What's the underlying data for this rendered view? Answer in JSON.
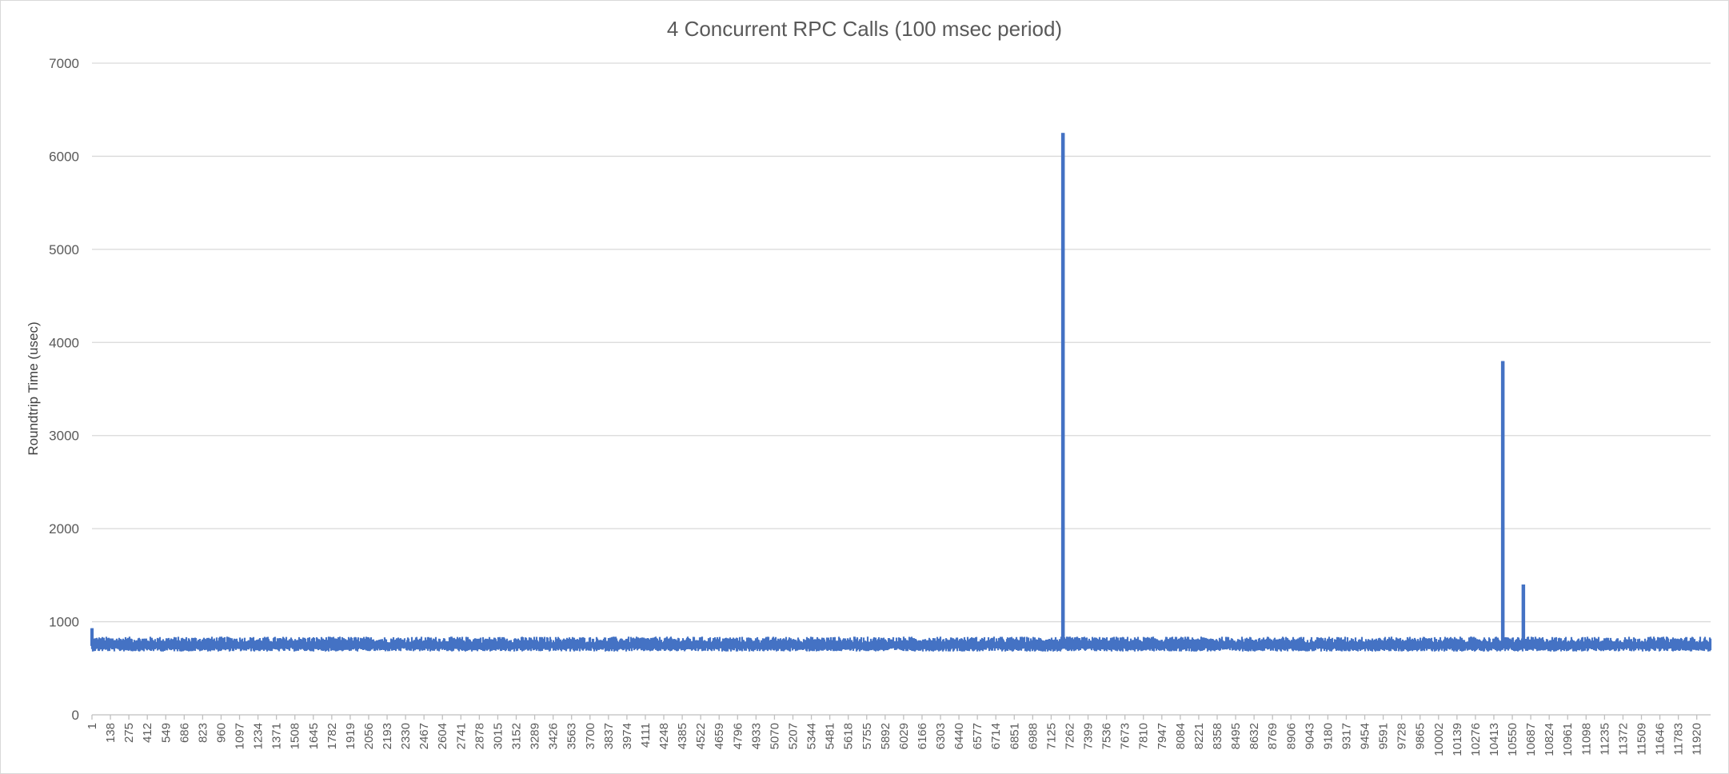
{
  "chart_data": {
    "type": "line",
    "title": "4 Concurrent RPC Calls (100 msec period)",
    "xlabel": "",
    "ylabel": "Roundtrip Time (usec)",
    "ylim": [
      0,
      7000
    ],
    "yticks": [
      0,
      1000,
      2000,
      3000,
      4000,
      5000,
      6000,
      7000
    ],
    "grid": true,
    "legend": "none",
    "line_color": "#4472c4",
    "xlim": [
      1,
      11999
    ],
    "xtick_labels": [
      "1",
      "138",
      "275",
      "412",
      "549",
      "686",
      "823",
      "960",
      "1097",
      "1234",
      "1371",
      "1508",
      "1645",
      "1782",
      "1919",
      "2056",
      "2193",
      "2330",
      "2467",
      "2604",
      "2741",
      "2878",
      "3015",
      "3152",
      "3289",
      "3426",
      "3563",
      "3700",
      "3837",
      "3974",
      "4111",
      "4248",
      "4385",
      "4522",
      "4659",
      "4796",
      "4933",
      "5070",
      "5207",
      "5344",
      "5481",
      "5618",
      "5755",
      "5892",
      "6029",
      "6166",
      "6303",
      "6440",
      "6577",
      "6714",
      "6851",
      "6988",
      "7125",
      "7262",
      "7399",
      "7536",
      "7673",
      "7810",
      "7947",
      "8084",
      "8221",
      "8358",
      "8495",
      "8632",
      "8769",
      "8906",
      "9043",
      "9180",
      "9317",
      "9454",
      "9591",
      "9728",
      "9865",
      "10002",
      "10139",
      "10276",
      "10413",
      "10550",
      "10687",
      "10824",
      "10961",
      "11098",
      "11235",
      "11372",
      "11509",
      "11646",
      "11783",
      "11920"
    ],
    "series": [
      {
        "baseline": {
          "mean": 740,
          "min": 680,
          "max": 840
        },
        "points": [
          {
            "x": 1,
            "y": 930
          },
          {
            "x": 7200,
            "y": 6250
          },
          {
            "x": 10460,
            "y": 3800
          },
          {
            "x": 10610,
            "y": 1400
          }
        ]
      }
    ]
  }
}
